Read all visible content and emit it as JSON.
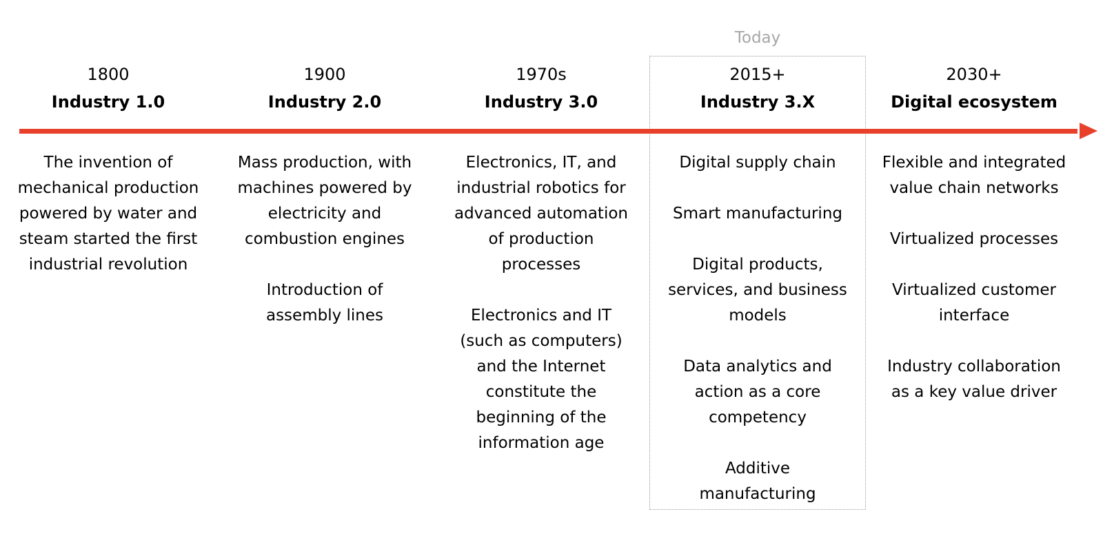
{
  "today_label": "Today",
  "accent_color": "#e8412b",
  "eras": [
    {
      "year": "1800",
      "name": "Industry 1.0",
      "items": [
        "The invention of\nmechanical production\npowered by water and\nsteam started the first\nindustrial revolution"
      ]
    },
    {
      "year": "1900",
      "name": "Industry 2.0",
      "items": [
        "Mass production, with\nmachines powered by\nelectricity and\ncombustion engines",
        "Introduction of\nassembly lines"
      ]
    },
    {
      "year": "1970s",
      "name": "Industry 3.0",
      "items": [
        "Electronics, IT, and\nindustrial robotics for\nadvanced automation\nof production\nprocesses",
        "Electronics and IT\n(such as computers)\nand the Internet\nconstitute the\nbeginning of the\ninformation age"
      ]
    },
    {
      "year": "2015+",
      "name": "Industry 3.X",
      "items": [
        "Digital supply chain",
        "Smart manufacturing",
        "Digital products,\nservices, and business\nmodels",
        "Data analytics and\naction as a core\ncompetency",
        "Additive\nmanufacturing"
      ]
    },
    {
      "year": "2030+",
      "name": "Digital ecosystem",
      "items": [
        "Flexible and integrated\nvalue chain networks",
        "Virtualized processes",
        "Virtualized customer\ninterface",
        "Industry collaboration\nas a key value driver"
      ]
    }
  ]
}
